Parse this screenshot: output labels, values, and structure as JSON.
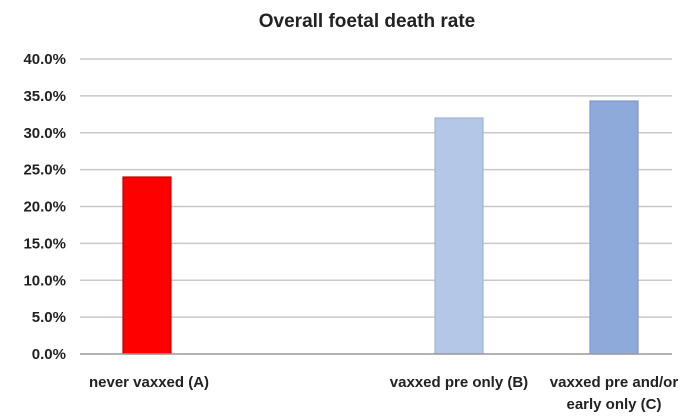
{
  "chart_data": {
    "type": "bar",
    "title": "Overall foetal death rate",
    "xlabel": "",
    "ylabel": "",
    "categories": [
      [
        "never vaxxed (A)"
      ],
      [
        "vaxxed pre only (B)"
      ],
      [
        "vaxxed pre and/or",
        "early only (C)"
      ]
    ],
    "values": [
      24.0,
      32.0,
      34.3
    ],
    "bar_colors": [
      "#ff0000",
      "#b4c7e7",
      "#8eaadb"
    ],
    "bar_edge_colors": [
      "#c00000",
      "#9fb5dc",
      "#7a99cf"
    ],
    "ylim": [
      0,
      40
    ],
    "yticks": [
      0,
      5,
      10,
      15,
      20,
      25,
      30,
      35,
      40
    ],
    "ytick_labels": [
      "0.0%",
      "5.0%",
      "10.0%",
      "15.0%",
      "20.0%",
      "25.0%",
      "30.0%",
      "35.0%",
      "40.0%"
    ],
    "grid": true,
    "legend": "none"
  }
}
